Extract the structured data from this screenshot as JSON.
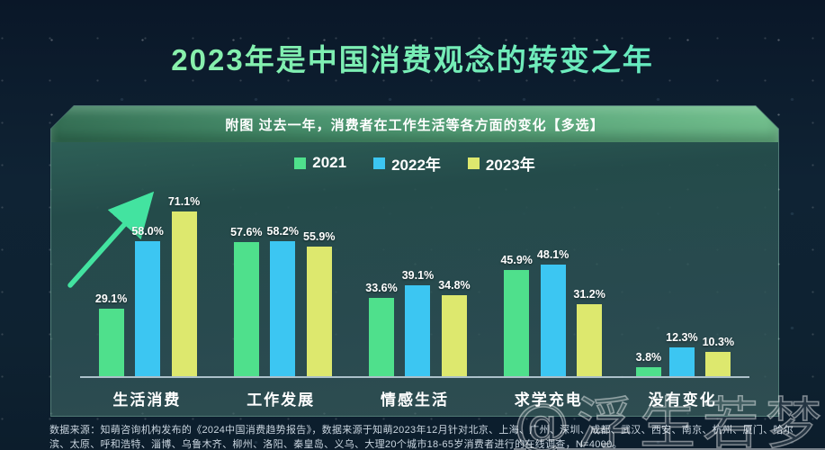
{
  "page": {
    "title": "2023年是中国消费观念的转变之年",
    "banner": "附图 过去一年，消费者在工作生活等各方面的变化【多选】",
    "footer": "数据来源：知萌咨询机构发布的《2024中国消费趋势报告》，数据来源于知萌2023年12月针对北京、上海、广州、深圳、成都、武汉、西安、南京、杭州、厦门、哈尔滨、太原、呼和浩特、淄博、乌鲁木齐、柳州、洛阳、秦皇岛、义乌、大理20个城市18-65岁消费者进行的在线调查，N=4000。",
    "watermark": "@浮生若梦"
  },
  "colors": {
    "accent_arrow": "#43e3a0",
    "title_green": "#7df0b4",
    "banner_green": "#4c9671",
    "axis_line": "#cddee8"
  },
  "legend": {
    "items": [
      {
        "label": "2021",
        "color": "#4fe08c"
      },
      {
        "label": "2022年",
        "color": "#3cc6f2"
      },
      {
        "label": "2023年",
        "color": "#dde86e"
      }
    ]
  },
  "chart_data": {
    "type": "bar",
    "title": "过去一年，消费者在工作生活等各方面的变化【多选】",
    "categories": [
      "生活消费",
      "工作发展",
      "情感生活",
      "求学充电",
      "没有变化"
    ],
    "series": [
      {
        "name": "2021",
        "color": "#4fe08c",
        "values": [
          29.1,
          57.6,
          33.6,
          45.9,
          3.8
        ]
      },
      {
        "name": "2022年",
        "color": "#3cc6f2",
        "values": [
          58.0,
          58.2,
          39.1,
          48.1,
          12.3
        ]
      },
      {
        "name": "2023年",
        "color": "#dde86e",
        "values": [
          71.1,
          55.9,
          34.8,
          31.2,
          10.3
        ]
      }
    ],
    "unit": "%",
    "ylim": [
      0,
      80
    ],
    "value_labels": true,
    "grid": false,
    "legend_position": "top",
    "annotation": "upward-trend-arrow near first category"
  }
}
